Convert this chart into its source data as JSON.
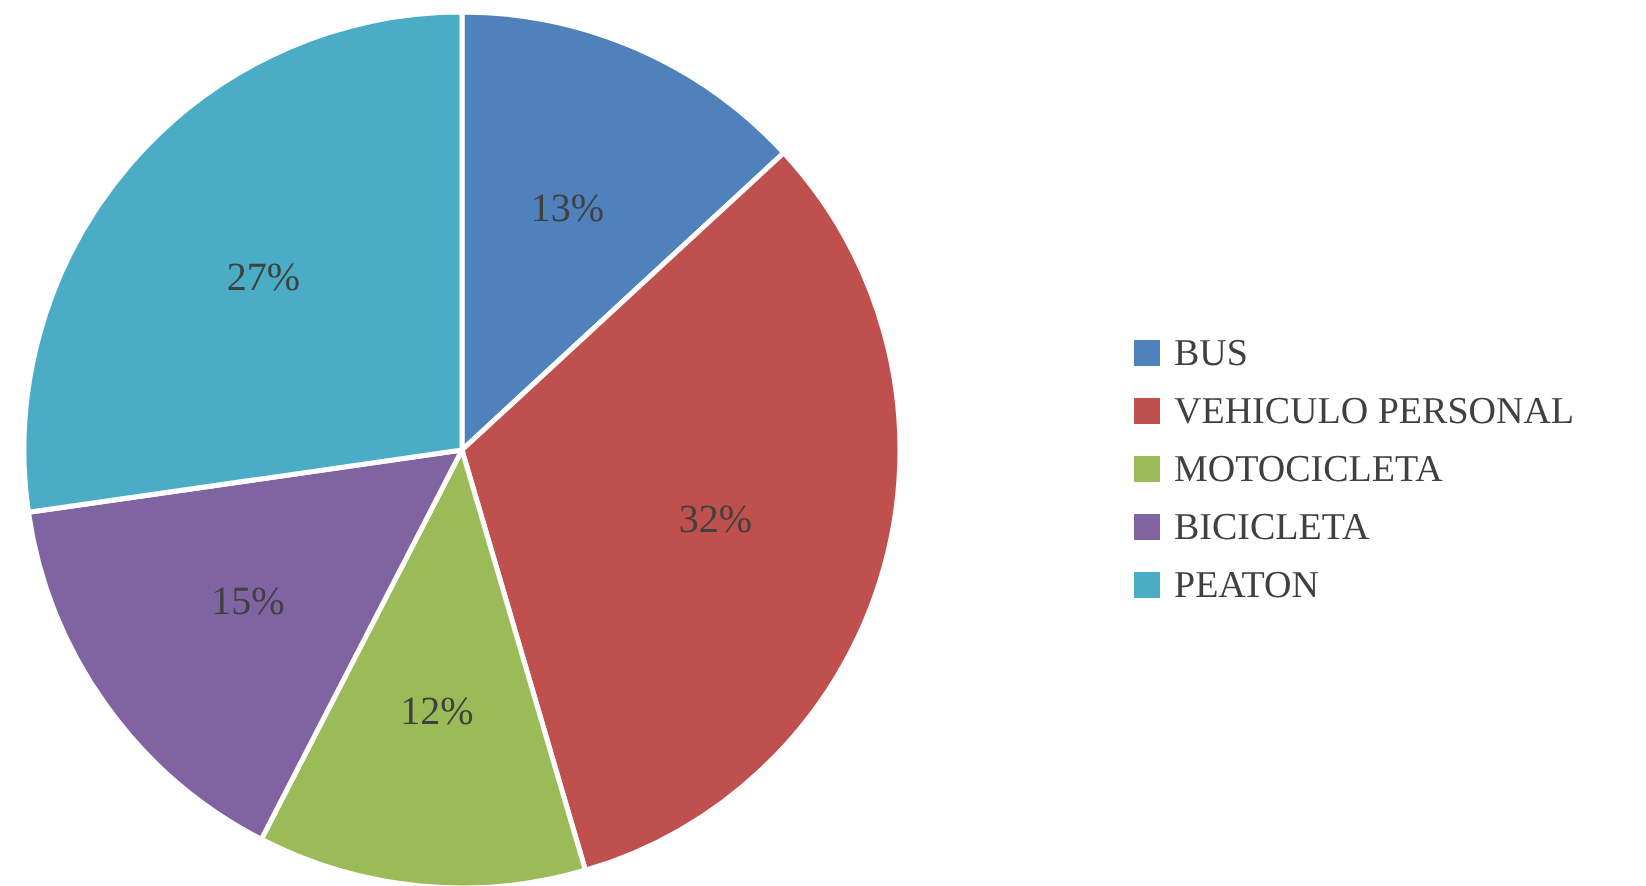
{
  "chart_data": {
    "type": "pie",
    "categories": [
      "BUS",
      "VEHICULO PERSONAL",
      "MOTOCICLETA",
      "BICICLETA",
      "PEATON"
    ],
    "values": [
      13,
      32,
      12,
      15,
      27
    ],
    "colors": [
      "#4f81bd",
      "#c0504d",
      "#9bbb59",
      "#8064a2",
      "#4bacc6"
    ],
    "value_labels": [
      "13%",
      "32%",
      "12%",
      "15%",
      "27%"
    ],
    "legend": "right"
  }
}
